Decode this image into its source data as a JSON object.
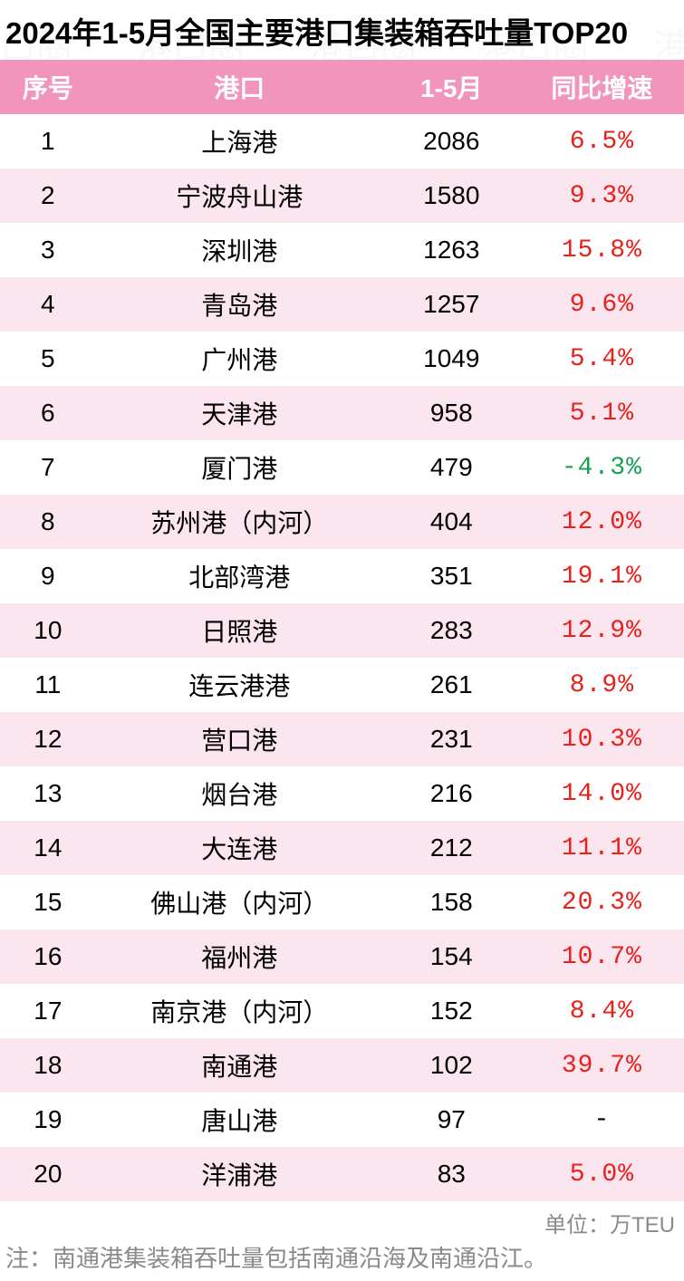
{
  "title": "2024年1-5月全国主要港口集装箱吞吐量TOP20",
  "unit_label": "单位：万TEU",
  "footnote": "注：南通港集装箱吞吐量包括南通沿海及南通沿江。",
  "watermark_text": "港口圈",
  "table": {
    "type": "table",
    "header_bg": "#f295bd",
    "header_fg": "#ffffff",
    "row_odd_bg": "#ffffff",
    "row_even_bg": "#fbe5ef",
    "positive_color": "#e8201a",
    "negative_color": "#18a058",
    "neutral_color": "#000000",
    "font_size_header": 28,
    "font_size_cell": 28,
    "columns": [
      {
        "key": "rank",
        "label": "序号",
        "width_pct": 14,
        "align": "center"
      },
      {
        "key": "port",
        "label": "港口",
        "width_pct": 42,
        "align": "center"
      },
      {
        "key": "value",
        "label": "1-5月",
        "width_pct": 20,
        "align": "center"
      },
      {
        "key": "growth",
        "label": "同比增速",
        "width_pct": 24,
        "align": "center"
      }
    ],
    "rows": [
      {
        "rank": 1,
        "port": "上海港",
        "value": 2086,
        "growth": "6.5%",
        "growth_sign": "pos"
      },
      {
        "rank": 2,
        "port": "宁波舟山港",
        "value": 1580,
        "growth": "9.3%",
        "growth_sign": "pos"
      },
      {
        "rank": 3,
        "port": "深圳港",
        "value": 1263,
        "growth": "15.8%",
        "growth_sign": "pos"
      },
      {
        "rank": 4,
        "port": "青岛港",
        "value": 1257,
        "growth": "9.6%",
        "growth_sign": "pos"
      },
      {
        "rank": 5,
        "port": "广州港",
        "value": 1049,
        "growth": "5.4%",
        "growth_sign": "pos"
      },
      {
        "rank": 6,
        "port": "天津港",
        "value": 958,
        "growth": "5.1%",
        "growth_sign": "pos"
      },
      {
        "rank": 7,
        "port": "厦门港",
        "value": 479,
        "growth": "-4.3%",
        "growth_sign": "neg"
      },
      {
        "rank": 8,
        "port": "苏州港（内河）",
        "value": 404,
        "growth": "12.0%",
        "growth_sign": "pos"
      },
      {
        "rank": 9,
        "port": "北部湾港",
        "value": 351,
        "growth": "19.1%",
        "growth_sign": "pos"
      },
      {
        "rank": 10,
        "port": "日照港",
        "value": 283,
        "growth": "12.9%",
        "growth_sign": "pos"
      },
      {
        "rank": 11,
        "port": "连云港港",
        "value": 261,
        "growth": "8.9%",
        "growth_sign": "pos"
      },
      {
        "rank": 12,
        "port": "营口港",
        "value": 231,
        "growth": "10.3%",
        "growth_sign": "pos"
      },
      {
        "rank": 13,
        "port": "烟台港",
        "value": 216,
        "growth": "14.0%",
        "growth_sign": "pos"
      },
      {
        "rank": 14,
        "port": "大连港",
        "value": 212,
        "growth": "11.1%",
        "growth_sign": "pos"
      },
      {
        "rank": 15,
        "port": "佛山港（内河）",
        "value": 158,
        "growth": "20.3%",
        "growth_sign": "pos"
      },
      {
        "rank": 16,
        "port": "福州港",
        "value": 154,
        "growth": "10.7%",
        "growth_sign": "pos"
      },
      {
        "rank": 17,
        "port": "南京港（内河）",
        "value": 152,
        "growth": "8.4%",
        "growth_sign": "pos"
      },
      {
        "rank": 18,
        "port": "南通港",
        "value": 102,
        "growth": "39.7%",
        "growth_sign": "pos"
      },
      {
        "rank": 19,
        "port": "唐山港",
        "value": 97,
        "growth": "-",
        "growth_sign": "none"
      },
      {
        "rank": 20,
        "port": "洋浦港",
        "value": 83,
        "growth": "5.0%",
        "growth_sign": "pos"
      }
    ]
  }
}
